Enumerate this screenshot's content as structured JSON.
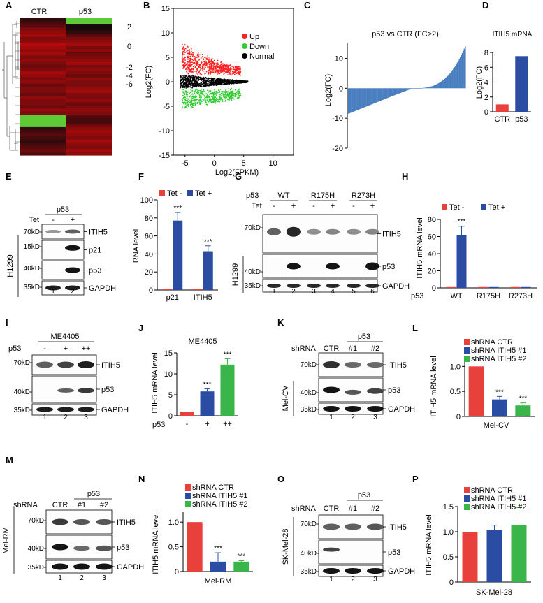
{
  "panels": {
    "A": {
      "letter": "A",
      "cols": [
        "CTR",
        "p53"
      ],
      "scale": [
        "2",
        "0",
        "-2",
        "-4",
        "-6"
      ]
    },
    "B": {
      "letter": "B",
      "xlabel": "Log2(FPKM)",
      "ylabel": "Log2(FC)",
      "legend": [
        "Up",
        "Down",
        "Normal"
      ],
      "colors": {
        "up": "#ff2020",
        "down": "#33cc33",
        "normal": "#000000"
      },
      "xticks": [
        "-5",
        "0",
        "5",
        "10"
      ],
      "yticks": [
        "15",
        "10",
        "5",
        "0",
        "-5",
        "-10",
        "-15"
      ]
    },
    "C": {
      "letter": "C",
      "title": "p53 vs CTR (FC>2)",
      "ylabel": "Log2(FC)",
      "yticks": [
        "10",
        "0",
        "-10",
        "-20"
      ],
      "color": "#4a7fbf"
    },
    "D": {
      "letter": "D",
      "title": "ITIH5 mRNA",
      "ylabel": "Log2(FC)",
      "yticks": [
        "8",
        "6",
        "4",
        "2",
        "0"
      ],
      "cats": [
        "CTR",
        "p53"
      ]
    },
    "E": {
      "letter": "E",
      "header": "p53",
      "tet": "Tet",
      "signs": [
        "-",
        "+"
      ],
      "cell": "H1299",
      "mw": [
        "70kD",
        "15kD",
        "40kD",
        "35kD"
      ],
      "bands": [
        "ITIH5",
        "p21",
        "p53",
        "GAPDH"
      ],
      "lanes": [
        "1",
        "2"
      ]
    },
    "F": {
      "letter": "F",
      "legend": [
        "Tet -",
        "Tet +"
      ],
      "ylabel": "RNA level",
      "yticks": [
        "100",
        "80",
        "60",
        "40",
        "20",
        "0"
      ],
      "cats": [
        "p21",
        "ITIH5"
      ],
      "sig": [
        "***",
        "***"
      ]
    },
    "G": {
      "letter": "G",
      "p53": "p53",
      "groups": [
        "WT",
        "R175H",
        "R273H"
      ],
      "tet": "Tet",
      "signs": [
        "-",
        "+",
        "-",
        "+",
        "-",
        "+"
      ],
      "cell": "H1299",
      "mw": [
        "70kD",
        "40kD",
        "35kD"
      ],
      "bands": [
        "ITIH5",
        "p53",
        "GAPDH"
      ],
      "lanes": [
        "1",
        "2",
        "3",
        "4",
        "5",
        "6"
      ]
    },
    "H": {
      "letter": "H",
      "legend": [
        "Tet -",
        "Tet +"
      ],
      "ylabel": "ITIH5 mRNA level",
      "yticks": [
        "80",
        "60",
        "40",
        "20",
        "0"
      ],
      "rowlabel": "p53",
      "cats": [
        "WT",
        "R175H",
        "R273H"
      ],
      "sig": "***"
    },
    "I": {
      "letter": "I",
      "header": "ME4405",
      "p53": "p53",
      "signs": [
        "-",
        "+",
        "++"
      ],
      "mw": [
        "70kD",
        "40kD",
        "35kD"
      ],
      "bands": [
        "ITIH5",
        "p53",
        "GAPDH"
      ],
      "lanes": [
        "1",
        "2",
        "3"
      ]
    },
    "J": {
      "letter": "J",
      "title": "ME4405",
      "ylabel": "ITIH5 mRNA level",
      "yticks": [
        "15",
        "10",
        "5",
        "0"
      ],
      "rowlabel": "p53",
      "cats": [
        "-",
        "+",
        "++"
      ],
      "sig": [
        "***",
        "***"
      ]
    },
    "K": {
      "letter": "K",
      "shrna": "shRNA",
      "header": "p53",
      "cols": [
        "CTR",
        "#1",
        "#2"
      ],
      "cell": "Mel-CV",
      "mw": [
        "70kD",
        "40kD",
        "35kD"
      ],
      "bands": [
        "ITIH5",
        "p53",
        "GAPDH"
      ],
      "lanes": [
        "1",
        "2",
        "3"
      ]
    },
    "L": {
      "letter": "L",
      "legend": [
        "shRNA CTR",
        "shRNA ITIH5 #1",
        "shRNA ITIH5 #2"
      ],
      "ylabel": "ITIH5 mRNA level",
      "yticks": [
        "1.0",
        "0.5",
        "0"
      ],
      "xlabel": "Mel-CV",
      "sig": [
        "***",
        "***"
      ]
    },
    "M": {
      "letter": "M",
      "shrna": "shRNA",
      "header": "p53",
      "cols": [
        "CTR",
        "#1",
        "#2"
      ],
      "cell": "Mel-RM",
      "mw": [
        "70kD",
        "40kD",
        "35kD"
      ],
      "bands": [
        "ITIH5",
        "p53",
        "GAPDH"
      ],
      "lanes": [
        "1",
        "2",
        "3"
      ]
    },
    "N": {
      "letter": "N",
      "legend": [
        "shRNA CTR",
        "shRNA ITIH5 #1",
        "shRNA ITIH5 #2"
      ],
      "ylabel": "ITIH5 mRNA level",
      "yticks": [
        "1.0",
        "0.5",
        "0"
      ],
      "xlabel": "Mel-RM",
      "sig": [
        "***",
        "***"
      ]
    },
    "O": {
      "letter": "O",
      "shrna": "shRNA",
      "header": "p53",
      "cols": [
        "CTR",
        "#1",
        "#2"
      ],
      "cell": "SK-Mel-28",
      "mw": [
        "70kD",
        "40kD",
        "35kD"
      ],
      "bands": [
        "ITIH5",
        "p53",
        "GAPDH"
      ],
      "lanes": [
        "1",
        "2",
        "3"
      ]
    },
    "P": {
      "letter": "P",
      "legend": [
        "shRNA CTR",
        "shRNA ITIH5 #1",
        "shRNA ITIH5 #2"
      ],
      "ylabel": "ITIH5 mRNA level",
      "yticks": [
        "1.5",
        "1.0",
        "0.5",
        "0"
      ],
      "xlabel": "SK-Mel-28"
    }
  },
  "colors": {
    "red": "#e8413c",
    "blue": "#2a4da3",
    "green": "#39b54a"
  },
  "chart_data": [
    {
      "id": "D",
      "type": "bar",
      "categories": [
        "CTR",
        "p53"
      ],
      "values": [
        1.0,
        7.5
      ],
      "ylim": [
        0,
        8
      ],
      "ylabel": "Log2(FC)",
      "title": "ITIH5 mRNA"
    },
    {
      "id": "F",
      "type": "bar",
      "categories": [
        "p21",
        "ITIH5"
      ],
      "series": [
        {
          "name": "Tet -",
          "values": [
            1,
            1
          ]
        },
        {
          "name": "Tet +",
          "values": [
            77,
            43
          ]
        }
      ],
      "errors": [
        [
          0,
          0
        ],
        [
          9,
          6
        ]
      ],
      "ylim": [
        0,
        100
      ],
      "ylabel": "RNA level"
    },
    {
      "id": "H",
      "type": "bar",
      "categories": [
        "WT",
        "R175H",
        "R273H"
      ],
      "series": [
        {
          "name": "Tet -",
          "values": [
            1,
            1,
            1
          ]
        },
        {
          "name": "Tet +",
          "values": [
            62,
            1,
            1
          ]
        }
      ],
      "errors": [
        [
          0,
          0,
          0
        ],
        [
          10,
          0,
          0
        ]
      ],
      "ylim": [
        0,
        80
      ],
      "ylabel": "ITIH5 mRNA level"
    },
    {
      "id": "J",
      "type": "bar",
      "categories": [
        "-",
        "+",
        "++"
      ],
      "values": [
        1.0,
        5.8,
        12.2
      ],
      "errors": [
        0,
        0.6,
        1.4
      ],
      "ylim": [
        0,
        15
      ],
      "ylabel": "ITIH5 mRNA level",
      "title": "ME4405"
    },
    {
      "id": "L",
      "type": "bar",
      "categories": [
        "shRNA CTR",
        "shRNA ITIH5 #1",
        "shRNA ITIH5 #2"
      ],
      "values": [
        1.0,
        0.34,
        0.22
      ],
      "errors": [
        0,
        0.06,
        0.05
      ],
      "ylim": [
        0,
        1.2
      ],
      "ylabel": "ITIH5 mRNA level",
      "xlabel": "Mel-CV"
    },
    {
      "id": "N",
      "type": "bar",
      "categories": [
        "shRNA CTR",
        "shRNA ITIH5 #1",
        "shRNA ITIH5 #2"
      ],
      "values": [
        1.0,
        0.2,
        0.2
      ],
      "errors": [
        0,
        0.18,
        0.02
      ],
      "ylim": [
        0,
        1.2
      ],
      "ylabel": "ITIH5 mRNA level",
      "xlabel": "Mel-RM"
    },
    {
      "id": "P",
      "type": "bar",
      "categories": [
        "shRNA CTR",
        "shRNA ITIH5 #1",
        "shRNA ITIH5 #2"
      ],
      "values": [
        1.0,
        1.03,
        1.13
      ],
      "errors": [
        0,
        0.1,
        0.35
      ],
      "ylim": [
        0,
        1.5
      ],
      "ylabel": "ITIH5 mRNA level",
      "xlabel": "SK-Mel-28"
    }
  ]
}
